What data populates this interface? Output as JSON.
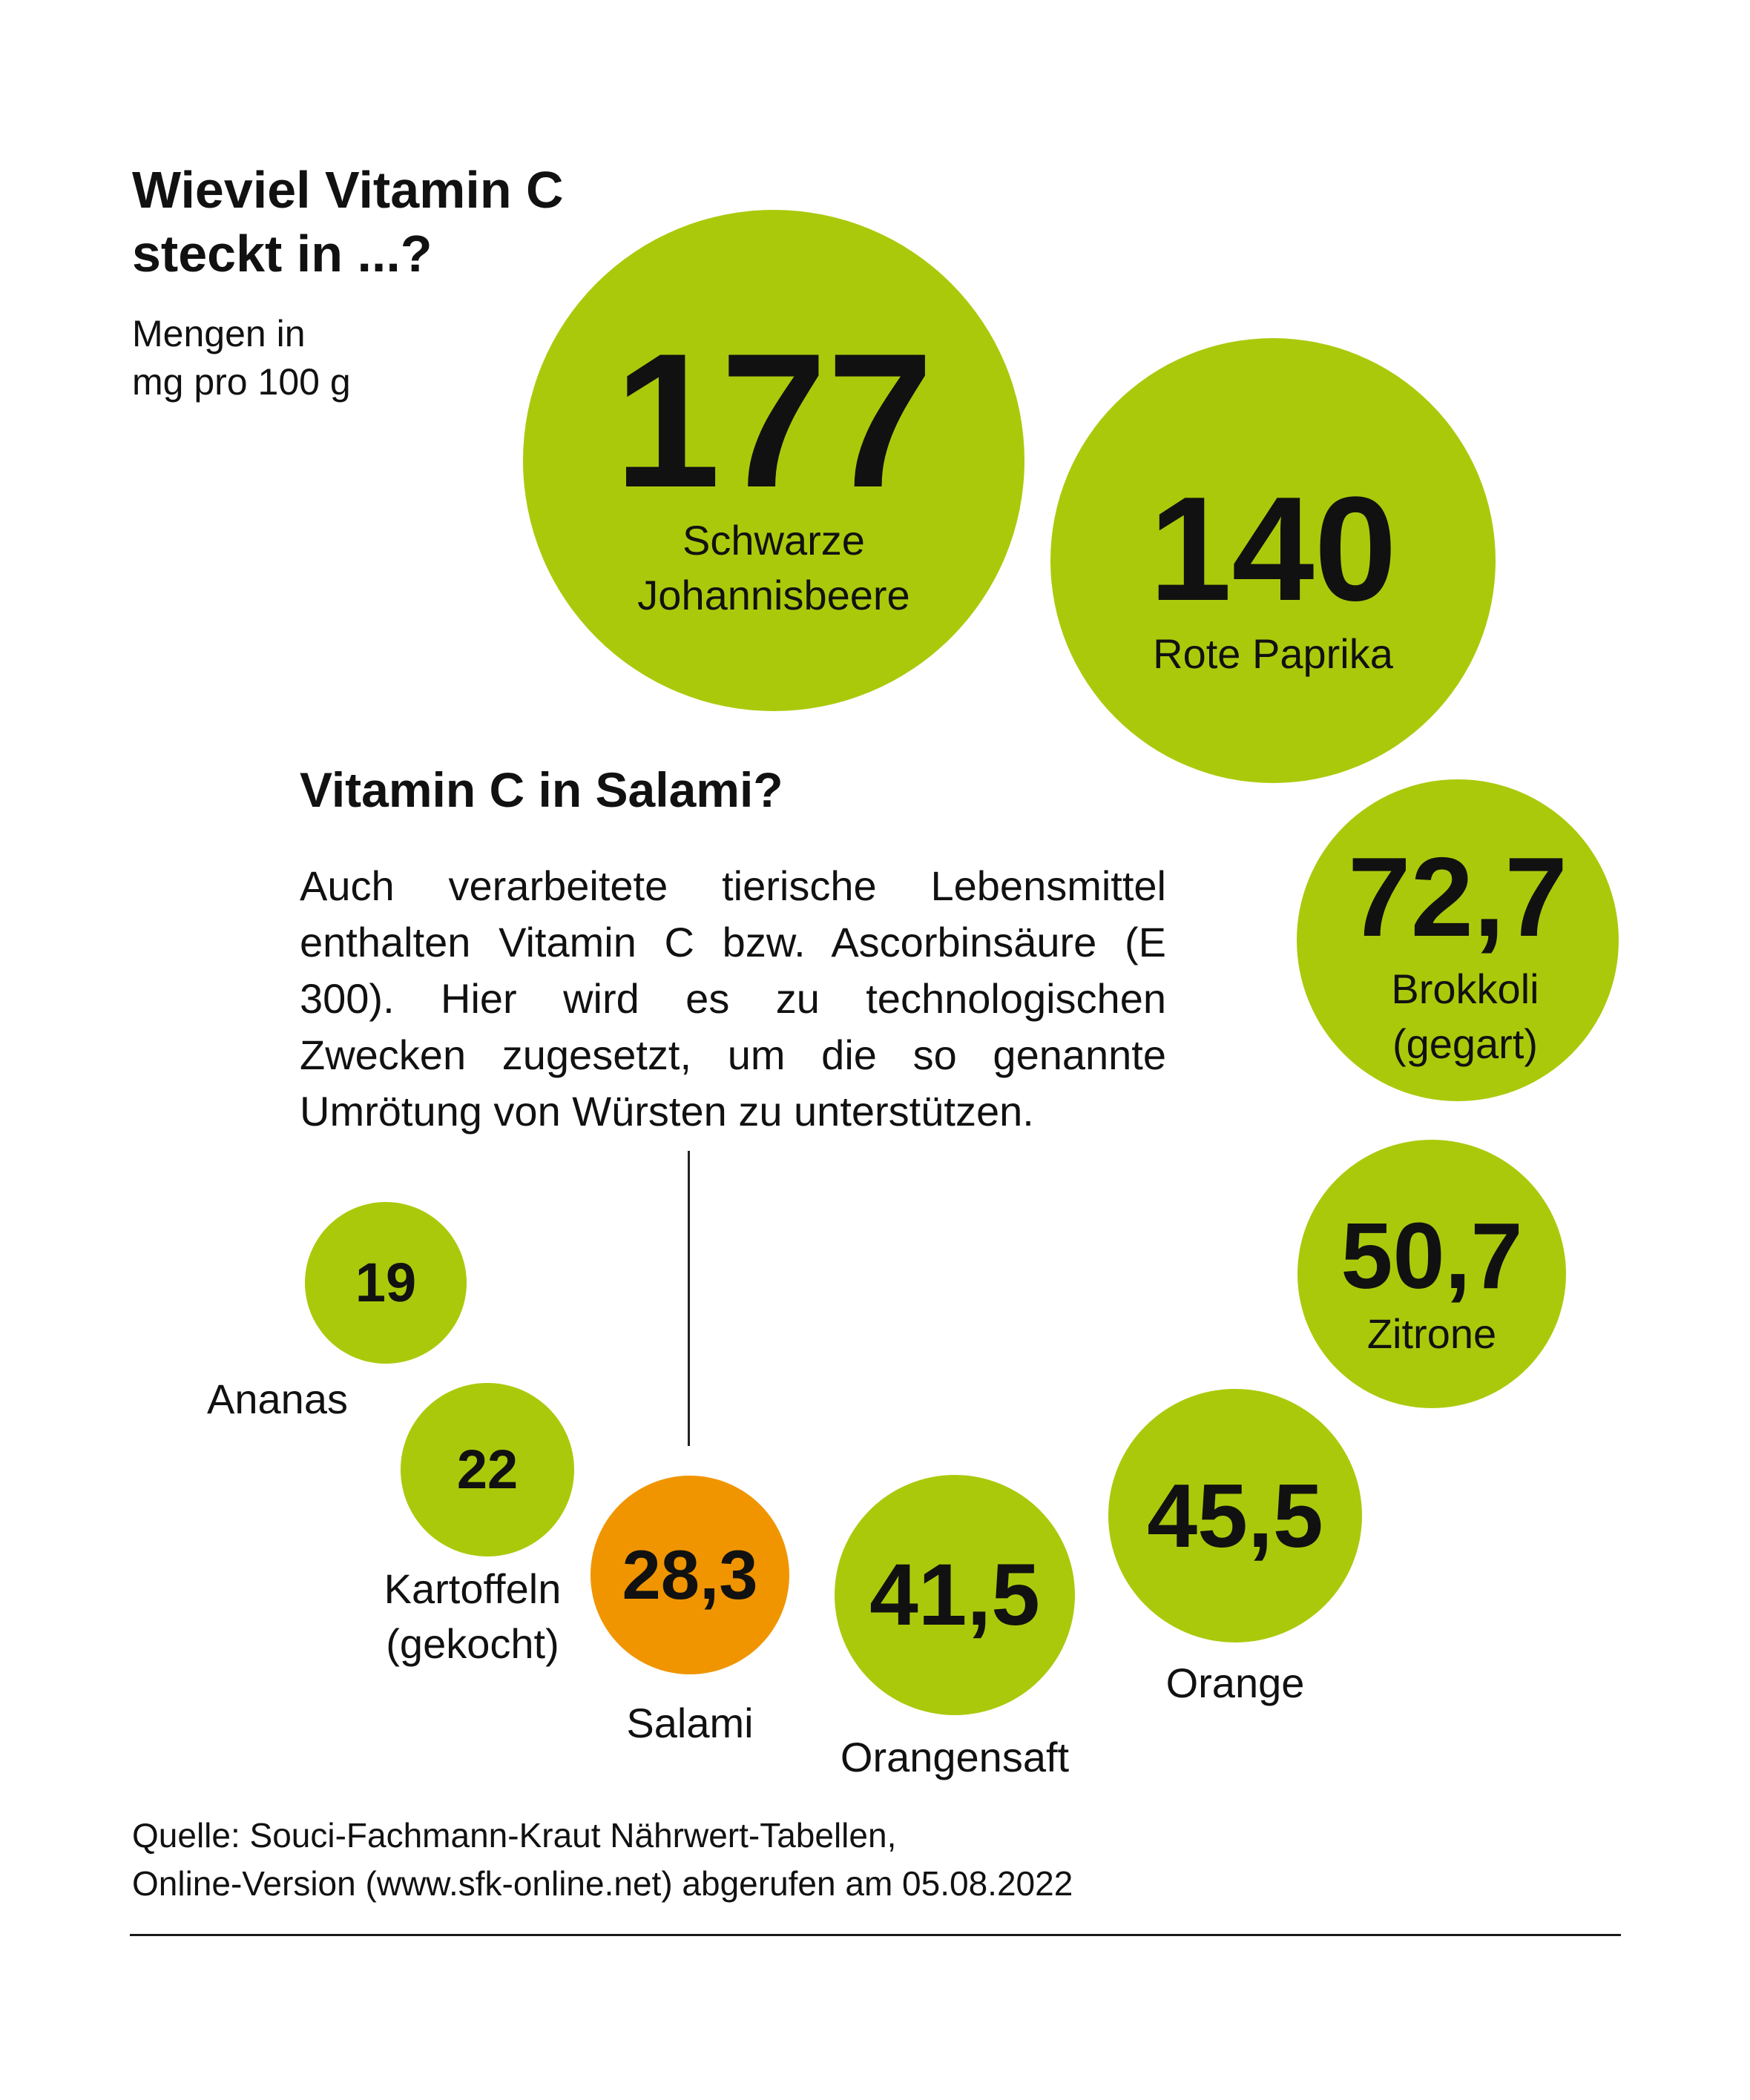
{
  "header": {
    "title_line1": "Wieviel Vitamin C",
    "title_line2": "steckt in ...?",
    "subtitle_line1": "Mengen in",
    "subtitle_line2": "mg pro 100 g"
  },
  "colors": {
    "bubble_default": "#abc90b",
    "bubble_highlight": "#f09500",
    "text": "#111111"
  },
  "chart_data": {
    "type": "bubble",
    "title": "Wieviel Vitamin C steckt in ...?",
    "unit": "mg pro 100 g",
    "items": [
      {
        "value": 177,
        "display": "177",
        "label_lines": [
          "Schwarze",
          "Johannisbeere"
        ],
        "highlight": false
      },
      {
        "value": 140,
        "display": "140",
        "label_lines": [
          "Rote Paprika"
        ],
        "highlight": false
      },
      {
        "value": 72.7,
        "display": "72,7",
        "label_lines": [
          "Brokkoli",
          "(gegart)"
        ],
        "highlight": false
      },
      {
        "value": 50.7,
        "display": "50,7",
        "label_lines": [
          "Zitrone"
        ],
        "highlight": false
      },
      {
        "value": 45.5,
        "display": "45,5",
        "label_lines": [
          "Orange"
        ],
        "highlight": false
      },
      {
        "value": 41.5,
        "display": "41,5",
        "label_lines": [
          "Orangensaft"
        ],
        "highlight": false
      },
      {
        "value": 28.3,
        "display": "28,3",
        "label_lines": [
          "Salami"
        ],
        "highlight": true
      },
      {
        "value": 22,
        "display": "22",
        "label_lines": [
          "Kartoffeln",
          "(gekocht)"
        ],
        "highlight": false
      },
      {
        "value": 19,
        "display": "19",
        "label_lines": [
          "Ananas"
        ],
        "highlight": false
      }
    ]
  },
  "annotation": {
    "title": "Vitamin C in Salami?",
    "text": "Auch verarbeitete tierische Lebensmittel enthalten Vitamin C bzw. Ascorbinsäure (E 300). Hier wird es zu technologischen Zwecken zugesetzt, um die so genannte Umrötung von Würsten zu unterstützen."
  },
  "source": {
    "line1": "Quelle: Souci-Fachmann-Kraut Nährwert-Tabellen,",
    "line2": "Online-Version (www.sfk-online.net) abgerufen am 05.08.2022"
  }
}
